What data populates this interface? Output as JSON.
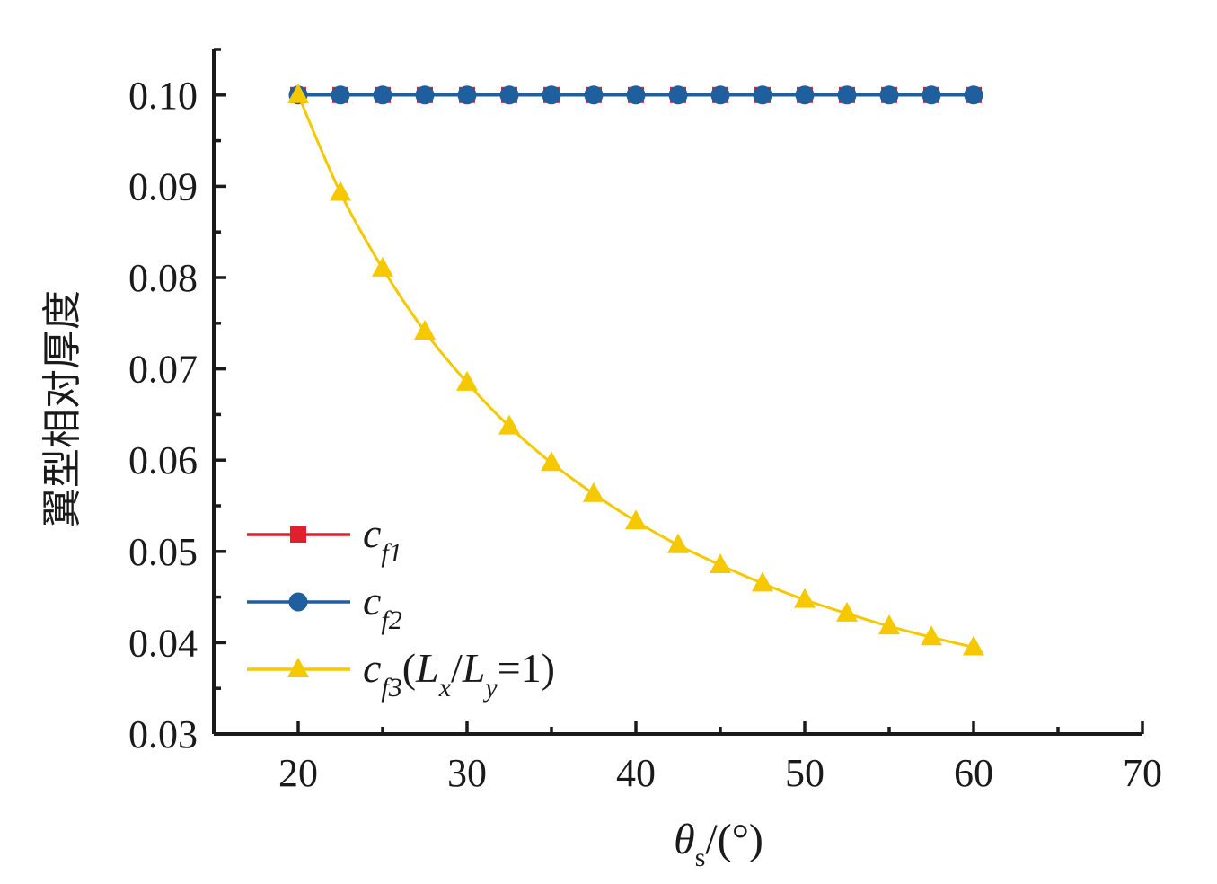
{
  "chart_data": {
    "type": "line",
    "xlabel": {
      "symbol": "θ",
      "subscript": "s",
      "rest": "/(°)"
    },
    "ylabel": "翼型相对厚度",
    "xlim": [
      15,
      70
    ],
    "ylim": [
      0.03,
      0.105
    ],
    "xticks": [
      "20",
      "30",
      "40",
      "50",
      "60",
      "70"
    ],
    "xtick_values": [
      20,
      30,
      40,
      50,
      60,
      70
    ],
    "yticks": [
      "0.03",
      "0.04",
      "0.05",
      "0.06",
      "0.07",
      "0.08",
      "0.09",
      "0.10"
    ],
    "ytick_values": [
      0.03,
      0.04,
      0.05,
      0.06,
      0.07,
      0.08,
      0.09,
      0.1
    ],
    "x": [
      20,
      22.5,
      25,
      27.5,
      30,
      32.5,
      35,
      37.5,
      40,
      42.5,
      45,
      47.5,
      50,
      52.5,
      55,
      57.5,
      60
    ],
    "grid": false,
    "legend_position": "bottom-left",
    "series": [
      {
        "name": "cf1",
        "legend": {
          "main": "c",
          "sub": "f1",
          "rest": ""
        },
        "marker": "square",
        "color": "#e0202a",
        "values": [
          0.1,
          0.1,
          0.1,
          0.1,
          0.1,
          0.1,
          0.1,
          0.1,
          0.1,
          0.1,
          0.1,
          0.1,
          0.1,
          0.1,
          0.1,
          0.1,
          0.1
        ]
      },
      {
        "name": "cf2",
        "legend": {
          "main": "c",
          "sub": "f2",
          "rest": ""
        },
        "marker": "circle",
        "color": "#1f5f9e",
        "values": [
          0.1,
          0.1,
          0.1,
          0.1,
          0.1,
          0.1,
          0.1,
          0.1,
          0.1,
          0.1,
          0.1,
          0.1,
          0.1,
          0.1,
          0.1,
          0.1,
          0.1
        ]
      },
      {
        "name": "cf3(Lx/Ly=1)",
        "legend": {
          "main": "c",
          "sub": "f3",
          "rest": "(L",
          "sub2": "x",
          "rest2": "/L",
          "sub3": "y",
          "rest3": "=1)"
        },
        "marker": "triangle",
        "color": "#f5c800",
        "values": [
          0.1,
          0.0893,
          0.081,
          0.0741,
          0.0685,
          0.0637,
          0.0597,
          0.0563,
          0.0533,
          0.0507,
          0.0485,
          0.0465,
          0.0447,
          0.0432,
          0.0418,
          0.0406,
          0.0395
        ]
      }
    ]
  }
}
